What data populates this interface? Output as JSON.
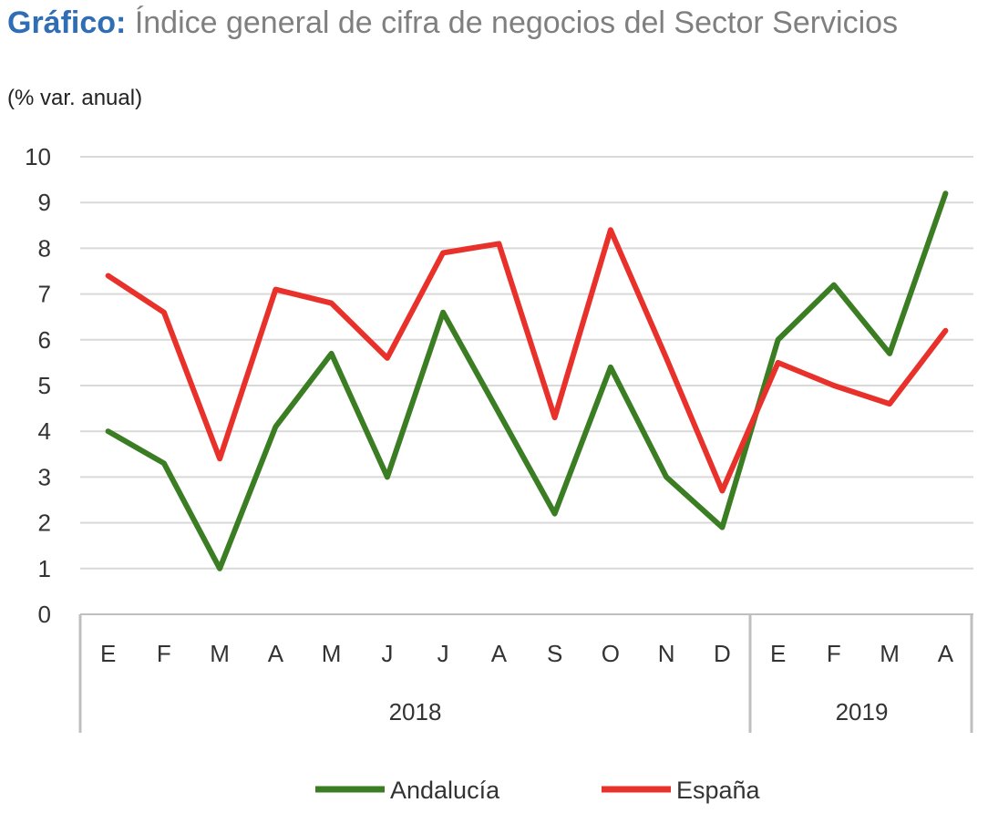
{
  "title": {
    "lead": "Gráfico:",
    "rest": "Índice general de cifra de negocios del Sector Servicios"
  },
  "subtitle": "(% var. anual)",
  "colors": {
    "andalucia": "#3a7d22",
    "espana": "#e8312a",
    "grid": "#d9d9d9",
    "axis": "#bfbfbf"
  },
  "chart_data": {
    "type": "line",
    "title": "Índice general de cifra de negocios del Sector Servicios",
    "ylabel": "(% var. anual)",
    "xlabel": "",
    "ylim": [
      0,
      10
    ],
    "yticks": [
      0,
      1,
      2,
      3,
      4,
      5,
      6,
      7,
      8,
      9,
      10
    ],
    "categories": [
      "E",
      "F",
      "M",
      "A",
      "M",
      "J",
      "J",
      "A",
      "S",
      "O",
      "N",
      "D",
      "E",
      "F",
      "M",
      "A"
    ],
    "groups": [
      {
        "label": "2018",
        "count": 12
      },
      {
        "label": "2019",
        "count": 4
      }
    ],
    "series": [
      {
        "name": "Andalucía",
        "color": "#3a7d22",
        "values": [
          4.0,
          3.3,
          1.0,
          4.1,
          5.7,
          3.0,
          6.6,
          4.4,
          2.2,
          5.4,
          3.0,
          1.9,
          6.0,
          7.2,
          5.7,
          9.2
        ]
      },
      {
        "name": "España",
        "color": "#e8312a",
        "values": [
          7.4,
          6.6,
          3.4,
          7.1,
          6.8,
          5.6,
          7.9,
          8.1,
          4.3,
          8.4,
          5.6,
          2.7,
          5.5,
          5.0,
          4.6,
          6.2
        ]
      }
    ],
    "legend": "bottom",
    "grid": true
  }
}
